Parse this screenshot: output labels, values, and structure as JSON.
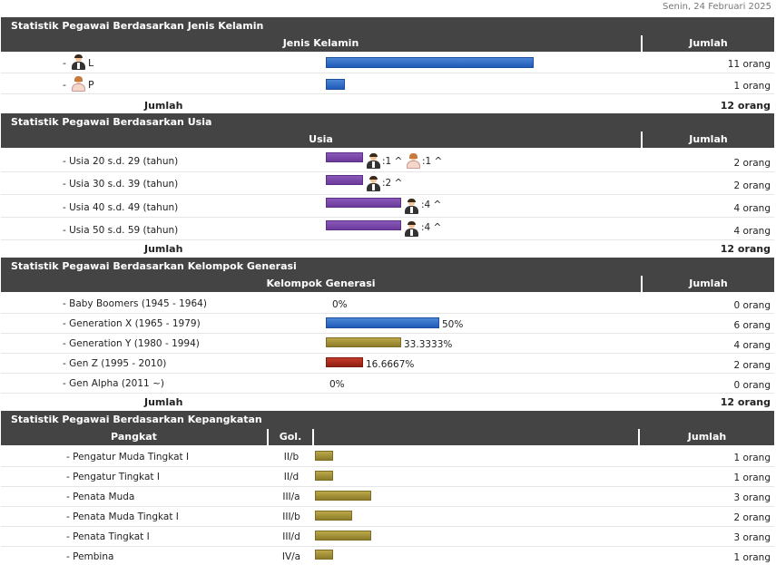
{
  "date": "Senin, 24 Februari 2025",
  "gender": {
    "title": "Statistik Pegawai Berdasarkan Jenis Kelamin",
    "col_category": "Jenis Kelamin",
    "col_count": "Jumlah",
    "rows": [
      {
        "prefix": "-",
        "label": "L",
        "count": "11 orang",
        "value": 11
      },
      {
        "prefix": "-",
        "label": "P",
        "count": "1 orang",
        "value": 1
      }
    ],
    "total_label": "Jumlah",
    "total_count": "12 orang"
  },
  "age": {
    "title": "Statistik Pegawai Berdasarkan Usia",
    "col_category": "Usia",
    "col_count": "Jumlah",
    "rows": [
      {
        "label": "- Usia 20 s.d. 29 (tahun)",
        "male_text": ":1 ^",
        "female_text": ":1 ^",
        "count": "2 orang",
        "value": 2
      },
      {
        "label": "- Usia 30 s.d. 39 (tahun)",
        "male_text": ":2 ^",
        "count": "2 orang",
        "value": 2
      },
      {
        "label": "- Usia 40 s.d. 49 (tahun)",
        "male_text": ":4 ^",
        "count": "4 orang",
        "value": 4
      },
      {
        "label": "- Usia 50 s.d. 59 (tahun)",
        "male_text": ":4 ^",
        "count": "4 orang",
        "value": 4
      }
    ],
    "total_label": "Jumlah",
    "total_count": "12 orang"
  },
  "generation": {
    "title": "Statistik Pegawai Berdasarkan Kelompok Generasi",
    "col_category": "Kelompok Generasi",
    "col_count": "Jumlah",
    "rows": [
      {
        "label": "- Baby Boomers (1945 - 1964)",
        "percent": "0%",
        "count": "0 orang",
        "value": 0,
        "color": "none"
      },
      {
        "label": "- Generation X (1965 - 1979)",
        "percent": "50%",
        "count": "6 orang",
        "value": 6,
        "color": "#2a66c2"
      },
      {
        "label": "- Generation Y (1980 - 1994)",
        "percent": "33.3333%",
        "count": "4 orang",
        "value": 4,
        "color": "#a89636"
      },
      {
        "label": "- Gen Z (1995 - 2010)",
        "percent": "16.6667%",
        "count": "2 orang",
        "value": 2,
        "color": "#a52a1c"
      },
      {
        "label": "- Gen Alpha (2011 ~)",
        "percent": "0%",
        "count": "0 orang",
        "value": 0,
        "color": "none"
      }
    ],
    "total_label": "Jumlah",
    "total_count": "12 orang"
  },
  "rank": {
    "title": "Statistik Pegawai Berdasarkan Kepangkatan",
    "col_rank": "Pangkat",
    "col_grade": "Gol.",
    "col_count": "Jumlah",
    "rows": [
      {
        "label": "- Pengatur Muda Tingkat I",
        "grade": "II/b",
        "count": "1 orang",
        "value": 1
      },
      {
        "label": "- Pengatur Tingkat I",
        "grade": "II/d",
        "count": "1 orang",
        "value": 1
      },
      {
        "label": "- Penata Muda",
        "grade": "III/a",
        "count": "3 orang",
        "value": 3
      },
      {
        "label": "- Penata Muda Tingkat I",
        "grade": "III/b",
        "count": "2 orang",
        "value": 2
      },
      {
        "label": "- Penata Tingkat I",
        "grade": "III/d",
        "count": "3 orang",
        "value": 3
      },
      {
        "label": "- Pembina",
        "grade": "IV/a",
        "count": "1 orang",
        "value": 1
      }
    ]
  }
}
